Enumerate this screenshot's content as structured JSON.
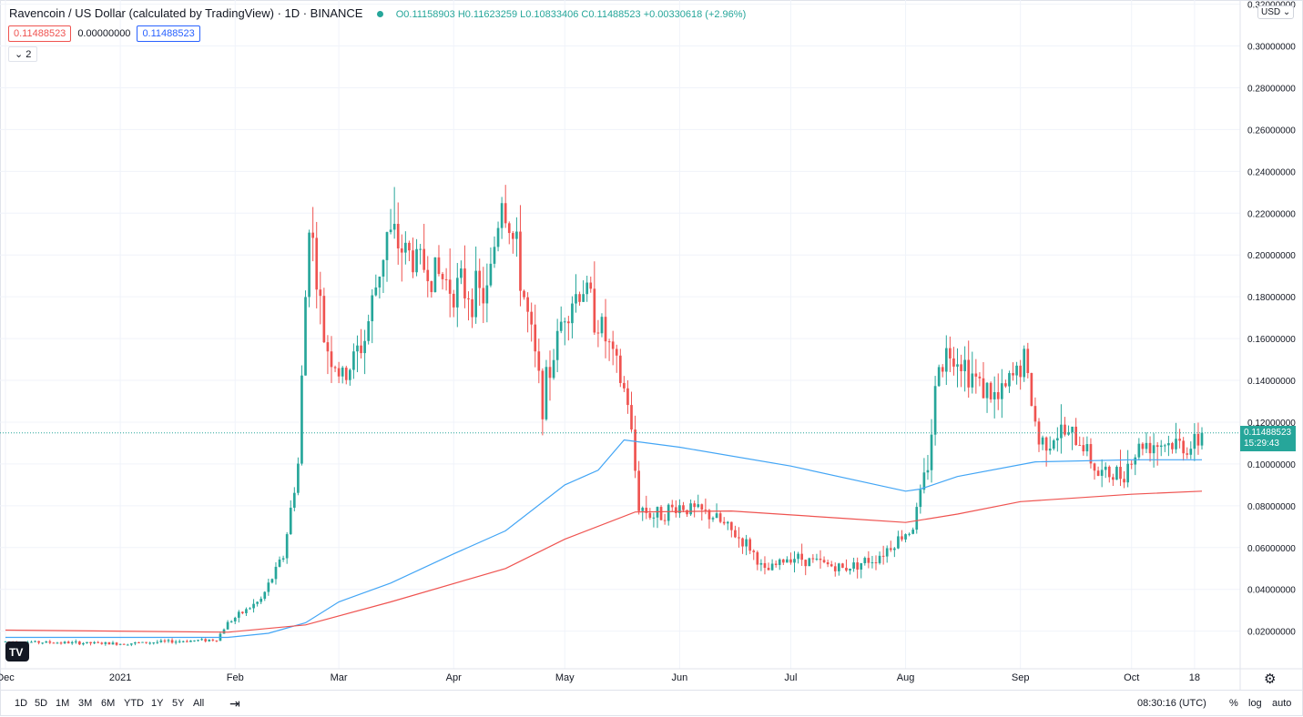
{
  "header": {
    "title": "Ravencoin / US Dollar (calculated by TradingView) · 1D · BINANCE",
    "ohlc": "O0.11158903 H0.11623259 L0.10833406 C0.11488523 +0.00330618 (+2.96%)"
  },
  "indicator_values": {
    "first": "0.11488523",
    "second": "0.00000000",
    "third": "0.11488523"
  },
  "collapse_label": "⌄ 2",
  "currency": "USD ⌄",
  "price_tag": {
    "price": "0.11488523",
    "countdown": "15:29:43"
  },
  "toolbar": {
    "timeframes": [
      "1D",
      "5D",
      "1M",
      "3M",
      "6M",
      "YTD",
      "1Y",
      "5Y",
      "All"
    ],
    "clock": "08:30:16 (UTC)",
    "percent": "%",
    "log": "log",
    "auto": "auto"
  },
  "colors": {
    "up": "#26a69a",
    "down": "#ef5350",
    "ma_blue": "#42a5f5",
    "ma_red": "#ef5350",
    "grid": "#f0f3fa"
  },
  "chart_data": {
    "type": "candlestick",
    "title": "Ravencoin / US Dollar (calculated by TradingView) · 1D · BINANCE",
    "xlabel": "",
    "ylabel": "",
    "ylim": [
      0.002,
      0.322
    ],
    "y_ticks": [
      "0.02000000",
      "0.04000000",
      "0.06000000",
      "0.08000000",
      "0.10000000",
      "0.12000000",
      "0.14000000",
      "0.16000000",
      "0.18000000",
      "0.20000000",
      "0.22000000",
      "0.24000000",
      "0.26000000",
      "0.28000000",
      "0.30000000",
      "0.32000000"
    ],
    "x_ticks": [
      "Dec",
      "2021",
      "Feb",
      "Mar",
      "Apr",
      "May",
      "Jun",
      "Jul",
      "Aug",
      "Sep",
      "Oct",
      "18"
    ],
    "date_range": [
      "2020-12-01",
      "2021-10-20"
    ],
    "grid": true,
    "last_price": 0.11488523,
    "price_anchors": [
      [
        "2020-12-01",
        0.015
      ],
      [
        "2021-01-01",
        0.014
      ],
      [
        "2021-01-27",
        0.016
      ],
      [
        "2021-01-30",
        0.024
      ],
      [
        "2021-02-08",
        0.035
      ],
      [
        "2021-02-14",
        0.056
      ],
      [
        "2021-02-18",
        0.1
      ],
      [
        "2021-02-21",
        0.22
      ],
      [
        "2021-02-25",
        0.16
      ],
      [
        "2021-03-02",
        0.14
      ],
      [
        "2021-03-08",
        0.16
      ],
      [
        "2021-03-14",
        0.21
      ],
      [
        "2021-03-20",
        0.2
      ],
      [
        "2021-04-01",
        0.185
      ],
      [
        "2021-04-10",
        0.18
      ],
      [
        "2021-04-14",
        0.23
      ],
      [
        "2021-04-18",
        0.2
      ],
      [
        "2021-04-22",
        0.16
      ],
      [
        "2021-04-25",
        0.13
      ],
      [
        "2021-05-01",
        0.175
      ],
      [
        "2021-05-06",
        0.185
      ],
      [
        "2021-05-12",
        0.16
      ],
      [
        "2021-05-18",
        0.13
      ],
      [
        "2021-05-21",
        0.08
      ],
      [
        "2021-05-25",
        0.075
      ],
      [
        "2021-06-01",
        0.08
      ],
      [
        "2021-06-10",
        0.075
      ],
      [
        "2021-06-20",
        0.06
      ],
      [
        "2021-06-24",
        0.048
      ],
      [
        "2021-07-01",
        0.056
      ],
      [
        "2021-07-15",
        0.05
      ],
      [
        "2021-07-24",
        0.055
      ],
      [
        "2021-08-03",
        0.07
      ],
      [
        "2021-08-07",
        0.1
      ],
      [
        "2021-08-10",
        0.15
      ],
      [
        "2021-08-14",
        0.155
      ],
      [
        "2021-08-20",
        0.14
      ],
      [
        "2021-08-26",
        0.13
      ],
      [
        "2021-09-02",
        0.15
      ],
      [
        "2021-09-06",
        0.11
      ],
      [
        "2021-09-12",
        0.115
      ],
      [
        "2021-09-18",
        0.11
      ],
      [
        "2021-09-22",
        0.095
      ],
      [
        "2021-09-28",
        0.095
      ],
      [
        "2021-10-04",
        0.11
      ],
      [
        "2021-10-10",
        0.11
      ],
      [
        "2021-10-18",
        0.108
      ],
      [
        "2021-10-20",
        0.11488523
      ]
    ],
    "series": [
      {
        "points": [
          [
            "2020-12-01",
            0.017
          ],
          [
            "2021-01-30",
            0.017
          ],
          [
            "2021-02-10",
            0.019
          ],
          [
            "2021-02-20",
            0.024
          ],
          [
            "2021-03-01",
            0.034
          ],
          [
            "2021-03-15",
            0.043
          ],
          [
            "2021-04-01",
            0.057
          ],
          [
            "2021-04-15",
            0.068
          ],
          [
            "2021-05-01",
            0.09
          ],
          [
            "2021-05-10",
            0.097
          ],
          [
            "2021-05-17",
            0.1115
          ],
          [
            "2021-06-01",
            0.108
          ],
          [
            "2021-07-01",
            0.099
          ],
          [
            "2021-08-01",
            0.087
          ],
          [
            "2021-08-05",
            0.088
          ],
          [
            "2021-08-15",
            0.094
          ],
          [
            "2021-09-05",
            0.101
          ],
          [
            "2021-10-01",
            0.102
          ],
          [
            "2021-10-20",
            0.102
          ]
        ]
      },
      {
        "points": [
          [
            "2020-12-01",
            0.0205
          ],
          [
            "2021-01-30",
            0.0195
          ],
          [
            "2021-02-20",
            0.023
          ],
          [
            "2021-03-15",
            0.034
          ],
          [
            "2021-04-15",
            0.05
          ],
          [
            "2021-05-01",
            0.064
          ],
          [
            "2021-05-20",
            0.077
          ],
          [
            "2021-06-15",
            0.0775
          ],
          [
            "2021-07-15",
            0.074
          ],
          [
            "2021-08-01",
            0.072
          ],
          [
            "2021-08-15",
            0.076
          ],
          [
            "2021-09-01",
            0.082
          ],
          [
            "2021-10-01",
            0.0855
          ],
          [
            "2021-10-20",
            0.087
          ]
        ]
      }
    ]
  }
}
